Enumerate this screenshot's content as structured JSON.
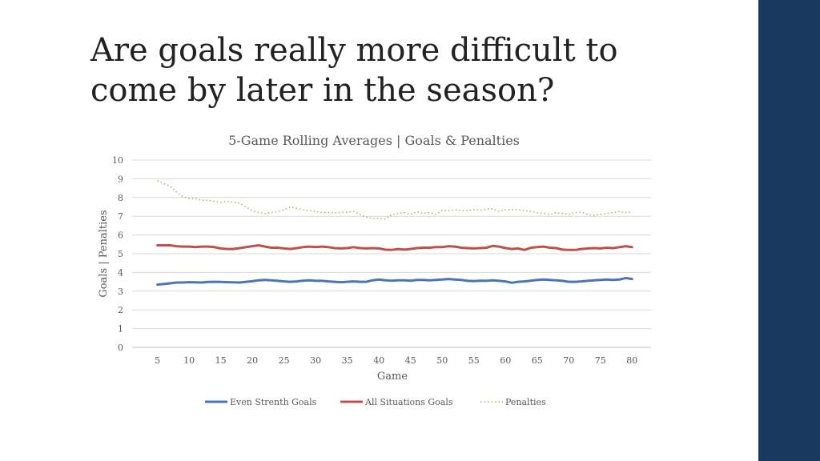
{
  "slide": {
    "title_line1": "Are goals really more difficult to",
    "title_line2": "come by later in the season?",
    "accent_color": "#1b3a5f"
  },
  "chart_data": {
    "type": "line",
    "title": "5-Game Rolling Averages | Goals & Penalties",
    "xlabel": "Game",
    "ylabel": "Goals | Penalties",
    "xlim": [
      5,
      81
    ],
    "ylim": [
      0,
      10
    ],
    "xticks": [
      5,
      10,
      15,
      20,
      25,
      30,
      35,
      40,
      45,
      50,
      55,
      60,
      65,
      70,
      75,
      80
    ],
    "yticks": [
      0,
      1,
      2,
      3,
      4,
      5,
      6,
      7,
      8,
      9,
      10
    ],
    "grid": true,
    "legend": "bottom",
    "x_start": 5,
    "series": [
      {
        "name": "Even Strenth Goals",
        "color": "#4a76b8",
        "style": "solid",
        "values": [
          3.35,
          3.38,
          3.42,
          3.46,
          3.46,
          3.48,
          3.47,
          3.46,
          3.49,
          3.5,
          3.49,
          3.48,
          3.47,
          3.46,
          3.5,
          3.53,
          3.58,
          3.6,
          3.58,
          3.55,
          3.52,
          3.5,
          3.52,
          3.56,
          3.58,
          3.55,
          3.55,
          3.52,
          3.5,
          3.48,
          3.5,
          3.52,
          3.5,
          3.5,
          3.58,
          3.62,
          3.58,
          3.56,
          3.58,
          3.58,
          3.56,
          3.6,
          3.6,
          3.58,
          3.6,
          3.62,
          3.65,
          3.62,
          3.6,
          3.55,
          3.54,
          3.56,
          3.55,
          3.58,
          3.55,
          3.52,
          3.45,
          3.5,
          3.52,
          3.56,
          3.6,
          3.62,
          3.6,
          3.58,
          3.55,
          3.5,
          3.5,
          3.52,
          3.55,
          3.58,
          3.6,
          3.62,
          3.6,
          3.62,
          3.7,
          3.65
        ]
      },
      {
        "name": "All Situations Goals",
        "color": "#c0504d",
        "style": "solid",
        "values": [
          5.45,
          5.45,
          5.45,
          5.4,
          5.38,
          5.38,
          5.35,
          5.38,
          5.38,
          5.35,
          5.28,
          5.25,
          5.25,
          5.3,
          5.35,
          5.4,
          5.45,
          5.38,
          5.32,
          5.32,
          5.28,
          5.25,
          5.3,
          5.35,
          5.38,
          5.35,
          5.38,
          5.35,
          5.3,
          5.28,
          5.3,
          5.35,
          5.3,
          5.28,
          5.3,
          5.28,
          5.22,
          5.2,
          5.25,
          5.22,
          5.25,
          5.3,
          5.32,
          5.32,
          5.35,
          5.35,
          5.4,
          5.38,
          5.32,
          5.3,
          5.28,
          5.3,
          5.32,
          5.42,
          5.38,
          5.3,
          5.25,
          5.28,
          5.2,
          5.32,
          5.35,
          5.38,
          5.32,
          5.3,
          5.22,
          5.2,
          5.2,
          5.25,
          5.28,
          5.3,
          5.28,
          5.32,
          5.3,
          5.35,
          5.4,
          5.35
        ]
      },
      {
        "name": "Penalties",
        "color": "#9bbb59",
        "style": "dotted",
        "values": [
          8.9,
          8.75,
          8.6,
          8.3,
          8.05,
          7.95,
          7.95,
          7.85,
          7.85,
          7.8,
          7.75,
          7.8,
          7.75,
          7.7,
          7.5,
          7.3,
          7.2,
          7.15,
          7.2,
          7.25,
          7.35,
          7.5,
          7.42,
          7.35,
          7.3,
          7.25,
          7.2,
          7.2,
          7.18,
          7.2,
          7.22,
          7.25,
          7.1,
          6.95,
          6.88,
          6.9,
          6.85,
          7.1,
          7.15,
          7.2,
          7.1,
          7.25,
          7.15,
          7.2,
          7.1,
          7.3,
          7.3,
          7.35,
          7.3,
          7.3,
          7.35,
          7.32,
          7.38,
          7.4,
          7.25,
          7.35,
          7.35,
          7.35,
          7.3,
          7.25,
          7.2,
          7.15,
          7.1,
          7.2,
          7.15,
          7.1,
          7.2,
          7.22,
          7.1,
          7.05,
          7.1,
          7.15,
          7.2,
          7.25,
          7.2,
          7.22
        ]
      }
    ]
  }
}
